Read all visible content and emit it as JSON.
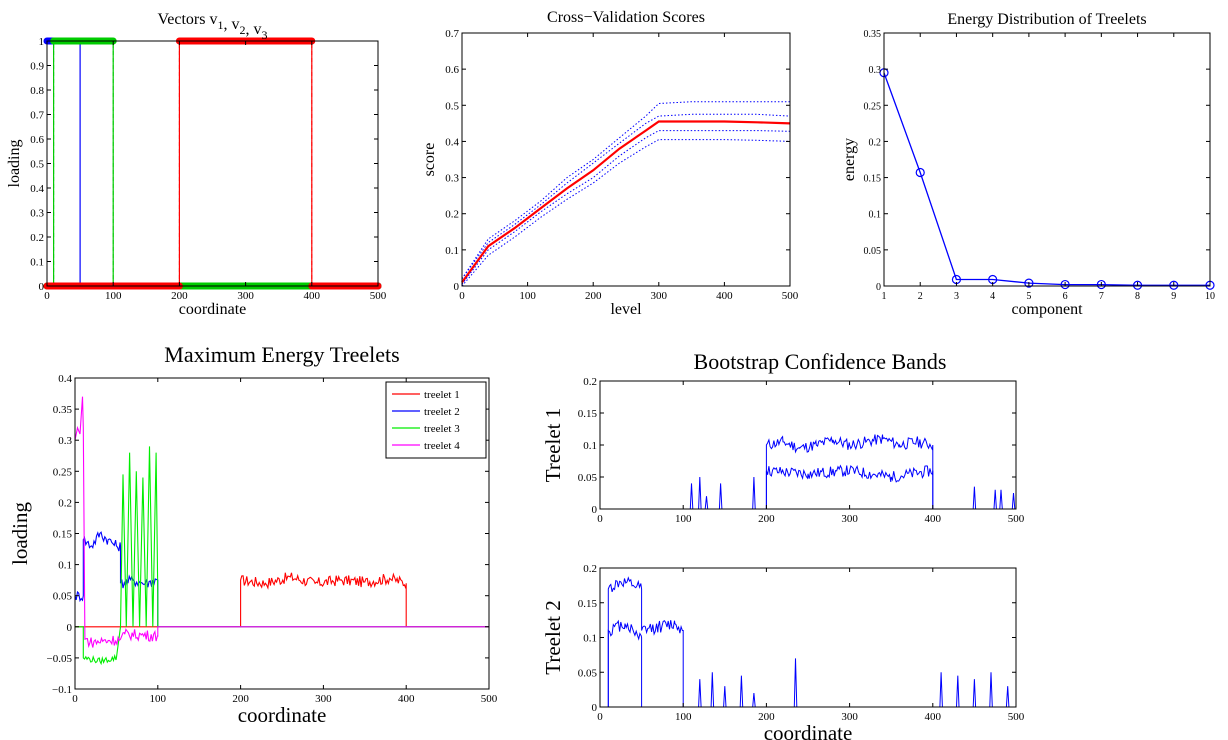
{
  "chart_data": [
    {
      "type": "line",
      "title": "Vectors v1, v2, v3",
      "title_parts": {
        "base": "Vectors v",
        "sub1": "1",
        "sep1": ", v",
        "sub2": "2",
        "sep2": ", v",
        "sub3": "3"
      },
      "xlabel": "coordinate",
      "ylabel": "loading",
      "xlim": [
        0,
        500
      ],
      "ylim": [
        0,
        1
      ],
      "xticks": [
        0,
        100,
        200,
        300,
        400,
        500
      ],
      "yticks": [
        0,
        0.1,
        0.2,
        0.3,
        0.4,
        0.5,
        0.6,
        0.7,
        0.8,
        0.9,
        1
      ],
      "xtick_labels": [
        "0",
        "100",
        "200",
        "300",
        "400",
        "500"
      ],
      "ytick_labels": [
        "0",
        "0.1",
        "0.2",
        "0.3",
        "0.4",
        "0.5",
        "0.6",
        "0.7",
        "0.8",
        "0.9",
        "1"
      ],
      "series": [
        {
          "color": "#0000ff",
          "x": [
            0,
            50,
            50,
            50,
            50,
            500
          ],
          "y": [
            1,
            1,
            0,
            0,
            0,
            0
          ]
        },
        {
          "color": "#00cc00",
          "x": [
            0,
            10,
            10,
            100,
            100,
            200,
            200,
            400,
            400,
            500
          ],
          "y": [
            0,
            0,
            1,
            1,
            0,
            0,
            0,
            0,
            0,
            0
          ]
        },
        {
          "color": "#ff0000",
          "x": [
            0,
            200,
            200,
            400,
            400,
            500
          ],
          "y": [
            0,
            0,
            1,
            1,
            0,
            0
          ]
        }
      ],
      "dashed_markers": [
        {
          "x": 10,
          "color": "#00cc00"
        },
        {
          "x": 100,
          "color": "#00cc00"
        },
        {
          "x": 200,
          "color": "#ff0000"
        },
        {
          "x": 400,
          "color": "#ff0000"
        }
      ]
    },
    {
      "type": "line",
      "title": "Cross−Validation Scores",
      "xlabel": "level",
      "ylabel": "score",
      "xlim": [
        0,
        500
      ],
      "ylim": [
        0,
        0.7
      ],
      "xticks": [
        0,
        100,
        200,
        300,
        400,
        500
      ],
      "yticks": [
        0,
        0.1,
        0.2,
        0.3,
        0.4,
        0.5,
        0.6,
        0.7
      ],
      "xtick_labels": [
        "0",
        "100",
        "200",
        "300",
        "400",
        "500"
      ],
      "ytick_labels": [
        "0",
        "0.1",
        "0.2",
        "0.3",
        "0.4",
        "0.5",
        "0.6",
        "0.7"
      ],
      "x": [
        0,
        40,
        80,
        120,
        160,
        200,
        240,
        280,
        300,
        350,
        400,
        450,
        500
      ],
      "series": [
        {
          "color": "#ff0000",
          "style": "solid",
          "values": [
            0.01,
            0.11,
            0.16,
            0.215,
            0.27,
            0.32,
            0.38,
            0.43,
            0.455,
            0.455,
            0.455,
            0.453,
            0.45
          ]
        },
        {
          "color": "#0000ff",
          "style": "dotted",
          "values": [
            0.02,
            0.13,
            0.18,
            0.235,
            0.3,
            0.35,
            0.41,
            0.47,
            0.505,
            0.51,
            0.51,
            0.51,
            0.51
          ]
        },
        {
          "color": "#0000ff",
          "style": "dotted",
          "values": [
            0.02,
            0.12,
            0.17,
            0.225,
            0.285,
            0.34,
            0.395,
            0.45,
            0.47,
            0.475,
            0.475,
            0.475,
            0.47
          ]
        },
        {
          "color": "#0000ff",
          "style": "dotted",
          "values": [
            0.005,
            0.1,
            0.15,
            0.205,
            0.255,
            0.3,
            0.36,
            0.41,
            0.43,
            0.43,
            0.43,
            0.43,
            0.428
          ]
        },
        {
          "color": "#0000ff",
          "style": "dotted",
          "values": [
            0.0,
            0.085,
            0.135,
            0.19,
            0.24,
            0.285,
            0.34,
            0.385,
            0.405,
            0.405,
            0.405,
            0.403,
            0.4
          ]
        }
      ]
    },
    {
      "type": "line",
      "title": "Energy Distribution of Treelets",
      "xlabel": "component",
      "ylabel": "energy",
      "xlim": [
        1,
        10
      ],
      "ylim": [
        0,
        0.35
      ],
      "xticks": [
        1,
        2,
        3,
        4,
        5,
        6,
        7,
        8,
        9,
        10
      ],
      "yticks": [
        0,
        0.05,
        0.1,
        0.15,
        0.2,
        0.25,
        0.3,
        0.35
      ],
      "xtick_labels": [
        "1",
        "2",
        "3",
        "4",
        "5",
        "6",
        "7",
        "8",
        "9",
        "10"
      ],
      "ytick_labels": [
        "0",
        "0.05",
        "0.1",
        "0.15",
        "0.2",
        "0.25",
        "0.3",
        "0.35"
      ],
      "x": [
        1,
        2,
        3,
        4,
        5,
        6,
        7,
        8,
        9,
        10
      ],
      "series": [
        {
          "color": "#0000ff",
          "marker": "circle",
          "values": [
            0.295,
            0.157,
            0.009,
            0.009,
            0.004,
            0.002,
            0.002,
            0.001,
            0.001,
            0.001
          ]
        }
      ]
    },
    {
      "type": "line",
      "title": "Maximum Energy Treelets",
      "xlabel": "coordinate",
      "ylabel": "loading",
      "xlim": [
        0,
        500
      ],
      "ylim": [
        -0.1,
        0.4
      ],
      "xticks": [
        0,
        100,
        200,
        300,
        400,
        500
      ],
      "yticks": [
        -0.1,
        -0.05,
        0,
        0.05,
        0.1,
        0.15,
        0.2,
        0.25,
        0.3,
        0.35,
        0.4
      ],
      "xtick_labels": [
        "0",
        "100",
        "200",
        "300",
        "400",
        "500"
      ],
      "ytick_labels": [
        "−0.1",
        "−0.05",
        "0",
        "0.05",
        "0.1",
        "0.15",
        "0.2",
        "0.25",
        "0.3",
        "0.35",
        "0.4"
      ],
      "legend": {
        "position": "top-right",
        "entries": [
          "treelet 1",
          "treelet 2",
          "treelet 3",
          "treelet 4"
        ]
      },
      "series": [
        {
          "name": "treelet 1",
          "color": "#ff0000",
          "x": [
            0,
            200,
            200,
            230,
            260,
            290,
            320,
            350,
            380,
            400,
            400,
            500
          ],
          "y": [
            0,
            0,
            0.075,
            0.07,
            0.08,
            0.07,
            0.075,
            0.072,
            0.078,
            0.07,
            0,
            0
          ]
        },
        {
          "name": "treelet 2",
          "color": "#0000ff",
          "x": [
            0,
            10,
            10,
            20,
            30,
            40,
            50,
            55,
            55,
            70,
            85,
            100,
            100,
            500
          ],
          "y": [
            0.05,
            0.05,
            0.14,
            0.13,
            0.15,
            0.14,
            0.13,
            0.13,
            0.07,
            0.075,
            0.07,
            0.075,
            0,
            0
          ]
        },
        {
          "name": "treelet 3",
          "color": "#00ee00",
          "x": [
            0,
            10,
            10,
            30,
            50,
            55,
            58,
            62,
            66,
            70,
            74,
            78,
            82,
            86,
            90,
            94,
            98,
            100,
            100,
            500
          ],
          "y": [
            0,
            0,
            -0.05,
            -0.055,
            -0.05,
            0,
            0.245,
            0,
            0.28,
            0,
            0.25,
            0,
            0.24,
            0,
            0.29,
            0,
            0.28,
            0.05,
            0,
            0
          ]
        },
        {
          "name": "treelet 4",
          "color": "#ff00ff",
          "x": [
            0,
            3,
            6,
            9,
            10,
            12,
            20,
            40,
            55,
            60,
            80,
            100,
            100,
            500
          ],
          "y": [
            0.3,
            0.32,
            0.31,
            0.37,
            0.32,
            -0.02,
            -0.025,
            -0.022,
            -0.02,
            -0.012,
            -0.013,
            -0.015,
            0,
            0
          ]
        }
      ]
    },
    {
      "type": "line",
      "title": "Bootstrap Confidence Bands",
      "subplot_ylabel": "Treelet 1",
      "xlabel": "",
      "xlim": [
        0,
        500
      ],
      "ylim": [
        0,
        0.2
      ],
      "xticks": [
        0,
        100,
        200,
        300,
        400,
        500
      ],
      "yticks": [
        0,
        0.05,
        0.1,
        0.15,
        0.2
      ],
      "xtick_labels": [
        "0",
        "100",
        "200",
        "300",
        "400",
        "500"
      ],
      "ytick_labels": [
        "0",
        "0.05",
        "0.1",
        "0.15",
        "0.2"
      ],
      "series": [
        {
          "color": "#0000ff",
          "x": [
            0,
            200,
            200,
            220,
            240,
            260,
            280,
            300,
            320,
            340,
            360,
            380,
            400,
            400,
            500
          ],
          "y": [
            0,
            0,
            0.1,
            0.105,
            0.095,
            0.1,
            0.108,
            0.1,
            0.105,
            0.11,
            0.1,
            0.105,
            0.1,
            0,
            0
          ]
        },
        {
          "color": "#0000ff",
          "x": [
            0,
            200,
            200,
            250,
            300,
            350,
            400,
            400,
            500
          ],
          "y": [
            0,
            0,
            0.06,
            0.055,
            0.06,
            0.05,
            0.06,
            0,
            0
          ]
        }
      ],
      "spikes": [
        {
          "x": 110,
          "y": 0.04
        },
        {
          "x": 120,
          "y": 0.05
        },
        {
          "x": 128,
          "y": 0.02
        },
        {
          "x": 145,
          "y": 0.04
        },
        {
          "x": 185,
          "y": 0.05
        },
        {
          "x": 450,
          "y": 0.035
        },
        {
          "x": 475,
          "y": 0.03
        },
        {
          "x": 482,
          "y": 0.03
        },
        {
          "x": 497,
          "y": 0.025
        }
      ]
    },
    {
      "type": "line",
      "subplot_ylabel": "Treelet 2",
      "xlabel": "coordinate",
      "xlim": [
        0,
        500
      ],
      "ylim": [
        0,
        0.2
      ],
      "xticks": [
        0,
        100,
        200,
        300,
        400,
        500
      ],
      "yticks": [
        0,
        0.05,
        0.1,
        0.15,
        0.2
      ],
      "xtick_labels": [
        "0",
        "100",
        "200",
        "300",
        "400",
        "500"
      ],
      "ytick_labels": [
        "0",
        "0.05",
        "0.1",
        "0.15",
        "0.2"
      ],
      "series": [
        {
          "color": "#0000ff",
          "x": [
            0,
            10,
            10,
            25,
            40,
            50,
            50,
            70,
            90,
            100,
            100,
            500
          ],
          "y": [
            0,
            0,
            0.17,
            0.18,
            0.175,
            0.17,
            0.11,
            0.115,
            0.12,
            0.11,
            0,
            0
          ]
        },
        {
          "color": "#0000ff",
          "x": [
            0,
            10,
            10,
            30,
            50,
            50,
            75,
            100,
            100,
            500
          ],
          "y": [
            0,
            0,
            0.11,
            0.12,
            0.1,
            0,
            0,
            0,
            0,
            0
          ]
        }
      ],
      "spikes": [
        {
          "x": 120,
          "y": 0.04
        },
        {
          "x": 135,
          "y": 0.05
        },
        {
          "x": 150,
          "y": 0.03
        },
        {
          "x": 170,
          "y": 0.045
        },
        {
          "x": 185,
          "y": 0.02
        },
        {
          "x": 235,
          "y": 0.07
        },
        {
          "x": 410,
          "y": 0.05
        },
        {
          "x": 430,
          "y": 0.045
        },
        {
          "x": 450,
          "y": 0.04
        },
        {
          "x": 470,
          "y": 0.05
        },
        {
          "x": 490,
          "y": 0.03
        }
      ]
    }
  ]
}
